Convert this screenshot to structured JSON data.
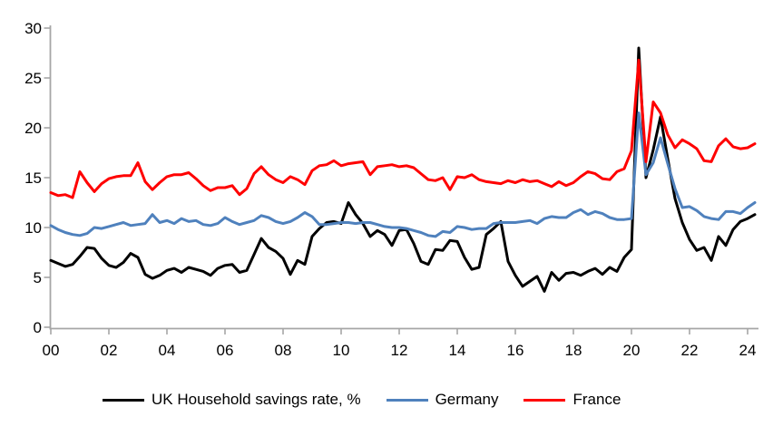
{
  "chart_data": {
    "type": "line",
    "title": "",
    "frequency": "quarterly",
    "period_start": "2000Q1",
    "period_end": "2024Q2",
    "legend_position": "bottom",
    "grid": "off",
    "axis_color": "#A6A6A6",
    "x_axis": {
      "tick_labels": [
        "00",
        "02",
        "04",
        "06",
        "08",
        "10",
        "12",
        "14",
        "16",
        "18",
        "20",
        "22",
        "24"
      ],
      "range_years": [
        2000,
        2024.5
      ]
    },
    "y_axis": {
      "ticks": [
        "0",
        "5",
        "10",
        "15",
        "20",
        "25",
        "30"
      ],
      "min": 0,
      "max": 30
    },
    "series": [
      {
        "id": "uk",
        "name": "UK Household savings rate, %",
        "color": "#000000",
        "values": [
          6.7,
          6.4,
          6.1,
          6.3,
          7.1,
          8.0,
          7.9,
          6.9,
          6.2,
          6.0,
          6.5,
          7.4,
          7.0,
          5.3,
          4.9,
          5.2,
          5.7,
          5.9,
          5.5,
          6.0,
          5.8,
          5.6,
          5.2,
          5.9,
          6.2,
          6.3,
          5.5,
          5.7,
          7.3,
          8.9,
          8.0,
          7.6,
          6.9,
          5.3,
          6.7,
          6.3,
          9.1,
          9.9,
          10.5,
          10.6,
          10.4,
          12.5,
          11.3,
          10.4,
          9.1,
          9.7,
          9.3,
          8.2,
          9.7,
          9.8,
          8.4,
          6.6,
          6.3,
          7.8,
          7.7,
          8.7,
          8.6,
          7.0,
          5.8,
          6.0,
          9.3,
          9.9,
          10.6,
          6.6,
          5.2,
          4.1,
          4.6,
          5.1,
          3.6,
          5.5,
          4.7,
          5.4,
          5.5,
          5.2,
          5.6,
          5.9,
          5.3,
          6.0,
          5.6,
          7.0,
          7.8,
          28.0,
          15.0,
          17.8,
          21.1,
          16.9,
          12.9,
          10.5,
          8.8,
          7.7,
          8.0,
          6.7,
          9.1,
          8.2,
          9.8,
          10.6,
          10.9,
          11.3
        ]
      },
      {
        "id": "germany",
        "name": "Germany",
        "color": "#4F81BD",
        "values": [
          10.2,
          9.8,
          9.5,
          9.3,
          9.2,
          9.4,
          10.0,
          9.9,
          10.1,
          10.3,
          10.5,
          10.2,
          10.3,
          10.4,
          11.3,
          10.5,
          10.7,
          10.4,
          10.9,
          10.6,
          10.7,
          10.3,
          10.2,
          10.4,
          11.0,
          10.6,
          10.3,
          10.5,
          10.7,
          11.2,
          11.0,
          10.6,
          10.4,
          10.6,
          11.0,
          11.5,
          11.1,
          10.3,
          10.3,
          10.4,
          10.5,
          10.5,
          10.4,
          10.5,
          10.5,
          10.3,
          10.1,
          10.0,
          10.0,
          9.9,
          9.7,
          9.5,
          9.2,
          9.1,
          9.6,
          9.5,
          10.1,
          10.0,
          9.8,
          9.9,
          9.9,
          10.4,
          10.5,
          10.5,
          10.5,
          10.6,
          10.7,
          10.4,
          10.9,
          11.1,
          11.0,
          11.0,
          11.5,
          11.8,
          11.3,
          11.6,
          11.4,
          11.0,
          10.8,
          10.8,
          10.9,
          21.5,
          15.3,
          16.5,
          19.0,
          16.4,
          13.9,
          12.0,
          12.1,
          11.7,
          11.1,
          10.9,
          10.8,
          11.6,
          11.6,
          11.4,
          12.0,
          12.5
        ]
      },
      {
        "id": "france",
        "name": "France",
        "color": "#FF0000",
        "values": [
          13.5,
          13.2,
          13.3,
          13.0,
          15.6,
          14.5,
          13.6,
          14.4,
          14.9,
          15.1,
          15.2,
          15.2,
          16.5,
          14.6,
          13.8,
          14.5,
          15.1,
          15.3,
          15.3,
          15.5,
          14.9,
          14.2,
          13.7,
          14.0,
          14.0,
          14.2,
          13.3,
          13.9,
          15.4,
          16.1,
          15.3,
          14.8,
          14.5,
          15.1,
          14.8,
          14.3,
          15.7,
          16.2,
          16.3,
          16.7,
          16.2,
          16.4,
          16.5,
          16.6,
          15.3,
          16.1,
          16.2,
          16.3,
          16.1,
          16.2,
          16.0,
          15.4,
          14.8,
          14.7,
          15.0,
          13.8,
          15.1,
          15.0,
          15.3,
          14.8,
          14.6,
          14.5,
          14.4,
          14.7,
          14.5,
          14.8,
          14.6,
          14.7,
          14.4,
          14.1,
          14.6,
          14.2,
          14.5,
          15.1,
          15.6,
          15.4,
          14.9,
          14.8,
          15.6,
          15.9,
          17.7,
          26.8,
          16.6,
          22.6,
          21.5,
          19.3,
          18.0,
          18.8,
          18.4,
          17.9,
          16.7,
          16.6,
          18.2,
          18.9,
          18.1,
          17.9,
          18.0,
          18.4
        ]
      }
    ]
  }
}
